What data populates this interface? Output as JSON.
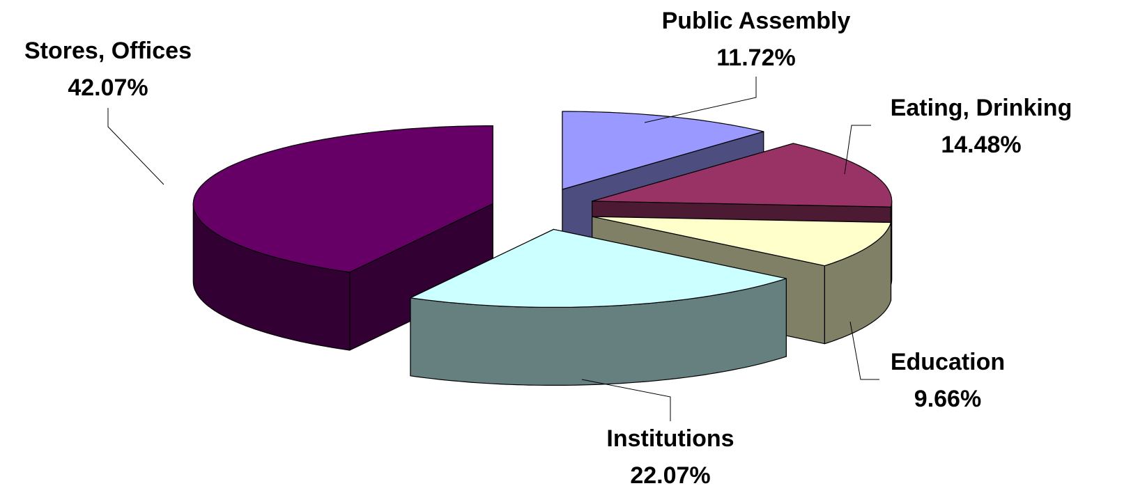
{
  "chart_data": {
    "type": "pie3d",
    "categories": [
      "Public Assembly",
      "Eating, Drinking",
      "Education",
      "Institutions",
      "Stores, Offices"
    ],
    "values": [
      11.72,
      14.48,
      9.66,
      22.07,
      42.07
    ],
    "value_labels": [
      "11.72%",
      "14.48%",
      "9.66%",
      "22.07%",
      "42.07%"
    ],
    "colors": [
      "#9999ff",
      "#993366",
      "#ffffcc",
      "#ccffff",
      "#660066"
    ]
  }
}
